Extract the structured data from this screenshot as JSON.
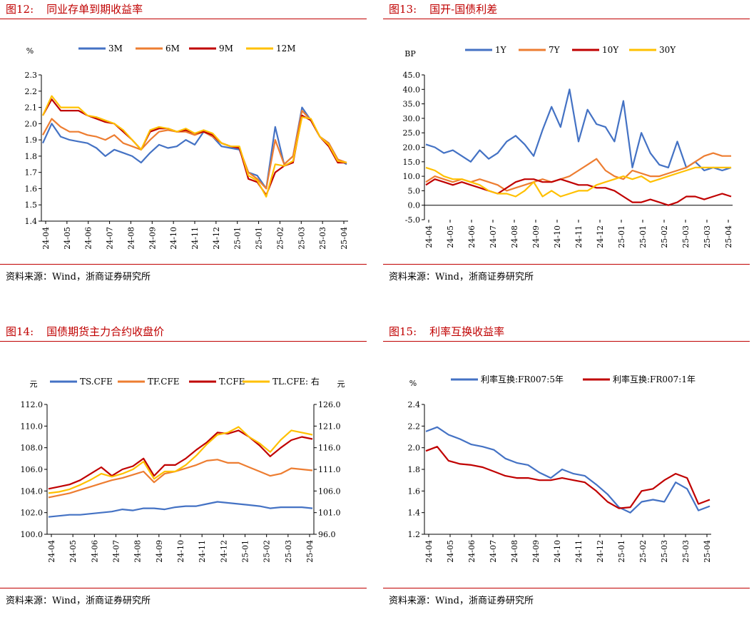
{
  "source_text": "资料来源：Wind，浙商证券研究所",
  "panels": [
    {
      "label": "图12:",
      "title": "同业存单到期收益率",
      "chart_data": {
        "type": "line",
        "unit_label": "%",
        "ylim": [
          1.4,
          2.3
        ],
        "yticks": [
          "2.3",
          "2.2",
          "2.1",
          "2.0",
          "1.9",
          "1.8",
          "1.7",
          "1.6",
          "1.5",
          "1.4"
        ],
        "xticks": [
          "24-04",
          "24-05",
          "24-06",
          "24-07",
          "24-08",
          "24-09",
          "24-10",
          "24-11",
          "24-12",
          "25-01",
          "25-01",
          "25-02",
          "25-03",
          "25-03",
          "25-04"
        ],
        "legend_position": "top",
        "series": [
          {
            "name": "3M",
            "color": "#4472C4",
            "values": [
              1.88,
              2.0,
              1.92,
              1.9,
              1.89,
              1.88,
              1.85,
              1.8,
              1.84,
              1.82,
              1.8,
              1.76,
              1.82,
              1.87,
              1.85,
              1.86,
              1.9,
              1.87,
              1.95,
              1.92,
              1.86,
              1.85,
              1.84,
              1.7,
              1.68,
              1.6,
              1.98,
              1.75,
              1.8,
              2.1,
              2.02,
              1.92,
              1.88,
              1.78,
              1.75
            ]
          },
          {
            "name": "6M",
            "color": "#ED7D31",
            "values": [
              1.93,
              2.03,
              1.98,
              1.95,
              1.95,
              1.93,
              1.92,
              1.9,
              1.93,
              1.88,
              1.86,
              1.84,
              1.9,
              1.95,
              1.96,
              1.95,
              1.95,
              1.93,
              1.95,
              1.92,
              1.88,
              1.86,
              1.85,
              1.7,
              1.66,
              1.6,
              1.9,
              1.75,
              1.8,
              2.08,
              2.02,
              1.92,
              1.88,
              1.78,
              1.76
            ]
          },
          {
            "name": "9M",
            "color": "#C00000",
            "values": [
              2.05,
              2.15,
              2.08,
              2.08,
              2.08,
              2.05,
              2.03,
              2.01,
              2.0,
              1.95,
              1.9,
              1.84,
              1.95,
              1.97,
              1.97,
              1.95,
              1.96,
              1.94,
              1.95,
              1.93,
              1.88,
              1.86,
              1.85,
              1.66,
              1.64,
              1.56,
              1.7,
              1.74,
              1.76,
              2.05,
              2.02,
              1.92,
              1.86,
              1.76,
              1.76
            ]
          },
          {
            "name": "12M",
            "color": "#FFC000",
            "values": [
              2.05,
              2.17,
              2.1,
              2.1,
              2.1,
              2.05,
              2.04,
              2.02,
              2.0,
              1.96,
              1.9,
              1.84,
              1.96,
              1.98,
              1.97,
              1.95,
              1.97,
              1.94,
              1.96,
              1.94,
              1.88,
              1.86,
              1.86,
              1.68,
              1.65,
              1.55,
              1.75,
              1.74,
              1.77,
              2.04,
              2.03,
              1.92,
              1.87,
              1.77,
              1.76
            ]
          }
        ]
      }
    },
    {
      "label": "图13:",
      "title": "国开-国债利差",
      "chart_data": {
        "type": "line",
        "unit_label": "BP",
        "ylim": [
          -5.0,
          45.0
        ],
        "yticks": [
          "45.0",
          "40.0",
          "35.0",
          "30.0",
          "25.0",
          "20.0",
          "15.0",
          "10.0",
          "5.0",
          "0.0",
          "-5.0"
        ],
        "xticks": [
          "24-04",
          "24-05",
          "24-06",
          "24-07",
          "24-08",
          "24-09",
          "24-10",
          "24-11",
          "24-12",
          "25-01",
          "25-01",
          "25-02",
          "25-03",
          "25-03",
          "25-04"
        ],
        "legend_position": "top",
        "series": [
          {
            "name": "1Y",
            "color": "#4472C4",
            "values": [
              21,
              20,
              18,
              19,
              17,
              15,
              19,
              16,
              18,
              22,
              24,
              21,
              17,
              26,
              34,
              27,
              40,
              22,
              33,
              28,
              27,
              22,
              36,
              13,
              25,
              18,
              14,
              13,
              22,
              13,
              15,
              12,
              13,
              12,
              13
            ]
          },
          {
            "name": "7Y",
            "color": "#ED7D31",
            "values": [
              8,
              10,
              9,
              8,
              9,
              8,
              9,
              8,
              7,
              5,
              6,
              7,
              8,
              9,
              8,
              9,
              10,
              12,
              14,
              16,
              12,
              10,
              9,
              12,
              11,
              10,
              10,
              11,
              12,
              13,
              15,
              17,
              18,
              17,
              17
            ]
          },
          {
            "name": "10Y",
            "color": "#C00000",
            "values": [
              7,
              9,
              8,
              7,
              8,
              7,
              6,
              5,
              4,
              6,
              8,
              9,
              9,
              8,
              8,
              9,
              8,
              7,
              7,
              6,
              6,
              5,
              3,
              1,
              1,
              2,
              1,
              0,
              1,
              3,
              3,
              2,
              3,
              4,
              3
            ]
          },
          {
            "name": "30Y",
            "color": "#FFC000",
            "values": [
              13,
              12,
              10,
              9,
              9,
              8,
              7,
              5,
              4,
              4,
              3,
              5,
              8,
              3,
              5,
              3,
              4,
              5,
              5,
              7,
              8,
              9,
              10,
              9,
              10,
              8,
              9,
              10,
              11,
              12,
              13,
              13,
              13,
              13,
              13
            ]
          }
        ]
      }
    },
    {
      "label": "图14:",
      "title": "国债期货主力合约收盘价",
      "chart_data": {
        "type": "line",
        "unit_label_left": "元",
        "unit_label_right": "元",
        "ylim": [
          100.0,
          112.0
        ],
        "ylim_right": [
          96.0,
          126.0
        ],
        "yticks": [
          "112.0",
          "110.0",
          "108.0",
          "106.0",
          "104.0",
          "102.0",
          "100.0"
        ],
        "yticks_right": [
          "126.0",
          "121.0",
          "116.0",
          "111.0",
          "106.0",
          "101.0",
          "96.0"
        ],
        "xticks": [
          "24-04",
          "24-05",
          "24-06",
          "24-07",
          "24-08",
          "24-09",
          "24-10",
          "24-11",
          "24-12",
          "25-01",
          "25-02",
          "25-03",
          "25-04"
        ],
        "legend_position": "top",
        "series": [
          {
            "name": "TS.CFE",
            "color": "#4472C4",
            "axis": "left",
            "values": [
              101.6,
              101.7,
              101.8,
              101.8,
              101.9,
              102.0,
              102.1,
              102.3,
              102.2,
              102.4,
              102.4,
              102.3,
              102.5,
              102.6,
              102.6,
              102.8,
              103.0,
              102.9,
              102.8,
              102.7,
              102.6,
              102.4,
              102.5,
              102.5,
              102.5,
              102.4
            ]
          },
          {
            "name": "TF.CFE",
            "color": "#ED7D31",
            "axis": "left",
            "values": [
              103.4,
              103.6,
              103.8,
              104.1,
              104.4,
              104.7,
              105.0,
              105.2,
              105.5,
              105.8,
              104.8,
              105.6,
              105.8,
              106.1,
              106.4,
              106.8,
              106.9,
              106.6,
              106.6,
              106.2,
              105.8,
              105.4,
              105.6,
              106.1,
              106.0,
              105.9
            ]
          },
          {
            "name": "T.CFE",
            "color": "#C00000",
            "axis": "left",
            "values": [
              104.2,
              104.4,
              104.6,
              105.0,
              105.6,
              106.2,
              105.4,
              106.0,
              106.3,
              107.0,
              105.4,
              106.4,
              106.4,
              107.0,
              107.8,
              108.5,
              109.4,
              109.3,
              109.6,
              109.0,
              108.2,
              107.2,
              108.0,
              108.7,
              109.0,
              108.8
            ]
          },
          {
            "name": "TL.CFE: 右",
            "color": "#FFC000",
            "axis": "right",
            "values": [
              105.5,
              105.8,
              106.4,
              107.4,
              108.6,
              110.0,
              109.3,
              110.0,
              111.0,
              112.8,
              108.8,
              110.5,
              110.5,
              112.0,
              114.2,
              116.8,
              119.0,
              119.5,
              120.8,
              118.5,
              117.0,
              115.0,
              117.8,
              120.0,
              119.5,
              119.0
            ]
          }
        ]
      }
    },
    {
      "label": "图15:",
      "title": "利率互换收益率",
      "chart_data": {
        "type": "line",
        "unit_label": "%",
        "ylim": [
          1.2,
          2.4
        ],
        "yticks": [
          "2.4",
          "2.2",
          "2.0",
          "1.8",
          "1.6",
          "1.4",
          "1.2"
        ],
        "xticks": [
          "24-04",
          "24-05",
          "24-06",
          "24-07",
          "24-08",
          "24-09",
          "24-10",
          "24-11",
          "24-12",
          "25-01",
          "25-02",
          "25-03",
          "25-03",
          "25-04"
        ],
        "legend_position": "top",
        "series": [
          {
            "name": "利率互换:FR007:5年",
            "color": "#4472C4",
            "values": [
              2.15,
              2.19,
              2.12,
              2.08,
              2.03,
              2.01,
              1.98,
              1.9,
              1.86,
              1.84,
              1.77,
              1.72,
              1.8,
              1.76,
              1.74,
              1.66,
              1.57,
              1.45,
              1.4,
              1.5,
              1.52,
              1.5,
              1.68,
              1.62,
              1.42,
              1.46
            ]
          },
          {
            "name": "利率互换:FR007:1年",
            "color": "#C00000",
            "values": [
              1.97,
              2.01,
              1.88,
              1.85,
              1.84,
              1.82,
              1.78,
              1.74,
              1.72,
              1.72,
              1.7,
              1.7,
              1.72,
              1.7,
              1.68,
              1.6,
              1.5,
              1.44,
              1.45,
              1.6,
              1.62,
              1.7,
              1.76,
              1.72,
              1.48,
              1.52
            ]
          }
        ]
      }
    }
  ]
}
